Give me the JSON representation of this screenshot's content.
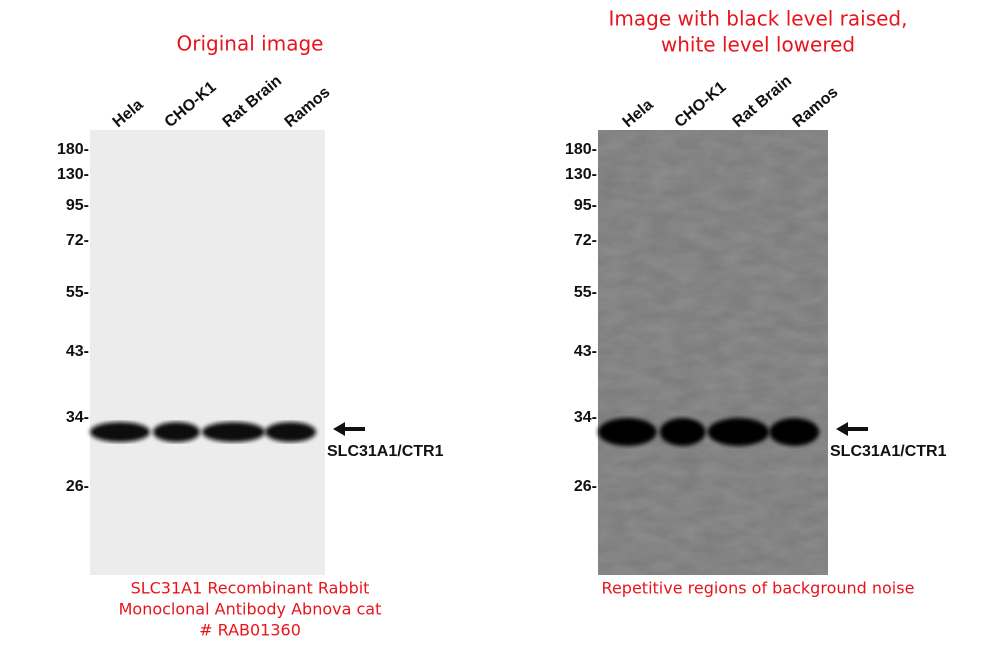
{
  "panels": [
    {
      "title": [
        "Original image"
      ],
      "lanes": [
        "Hela",
        "CHO-K1",
        "Rat Brain",
        "Ramos"
      ],
      "markers": [
        "180-",
        "130-",
        "95-",
        "72-",
        "55-",
        "43-",
        "34-",
        "26-"
      ],
      "band_label": "SLC31A1/CTR1",
      "caption": [
        "SLC31A1 Recombinant Rabbit",
        "Monoclonal Antibody Abnova cat",
        "# RAB01360"
      ]
    },
    {
      "title": [
        "Image with black level raised,",
        "white level lowered"
      ],
      "lanes": [
        "Hela",
        "CHO-K1",
        "Rat Brain",
        "Ramos"
      ],
      "markers": [
        "180-",
        "130-",
        "95-",
        "72-",
        "55-",
        "43-",
        "34-",
        "26-"
      ],
      "band_label": "SLC31A1/CTR1",
      "caption": [
        "Repetitive regions of background noise"
      ]
    }
  ]
}
